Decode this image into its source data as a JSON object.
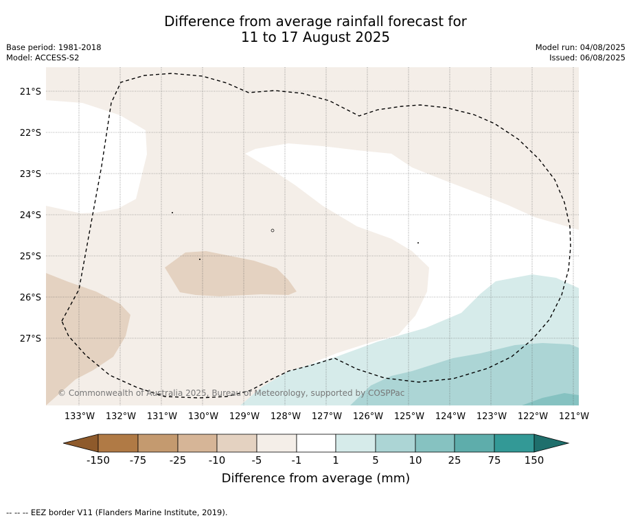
{
  "title_line1": "Difference from average rainfall forecast for",
  "title_line2": "11 to 17 August 2025",
  "base_period": "Base period: 1981-2018",
  "model": "Model: ACCESS-S2",
  "model_run": "Model run: 04/08/2025",
  "issued": "Issued: 06/08/2025",
  "copyright": "© Commonwealth of Australia 2025, Bureau of Meteorology, supported by COSPPac",
  "lat_labels": [
    "21°S",
    "22°S",
    "23°S",
    "24°S",
    "25°S",
    "26°S",
    "27°S"
  ],
  "lon_labels": [
    "133°W",
    "132°W",
    "131°W",
    "130°W",
    "129°W",
    "128°W",
    "127°W",
    "126°W",
    "125°W",
    "124°W",
    "123°W",
    "122°W",
    "121°W"
  ],
  "colorbar": {
    "tick_labels": [
      "-150",
      "-75",
      "-25",
      "-10",
      "-5",
      "-1",
      "1",
      "5",
      "10",
      "25",
      "75",
      "150"
    ],
    "colors": [
      "#8e5a2b",
      "#b07a45",
      "#c49a6f",
      "#d6b597",
      "#e4d2c1",
      "#f4eee8",
      "#ffffff",
      "#d6ebea",
      "#acd5d5",
      "#86c2c1",
      "#5eadab",
      "#339996",
      "#1f6f6c"
    ],
    "label": "Difference from average (mm)"
  },
  "legend_text": "--  --  -- EEZ border V11 (Flanders Marine Institute, 2019)."
}
